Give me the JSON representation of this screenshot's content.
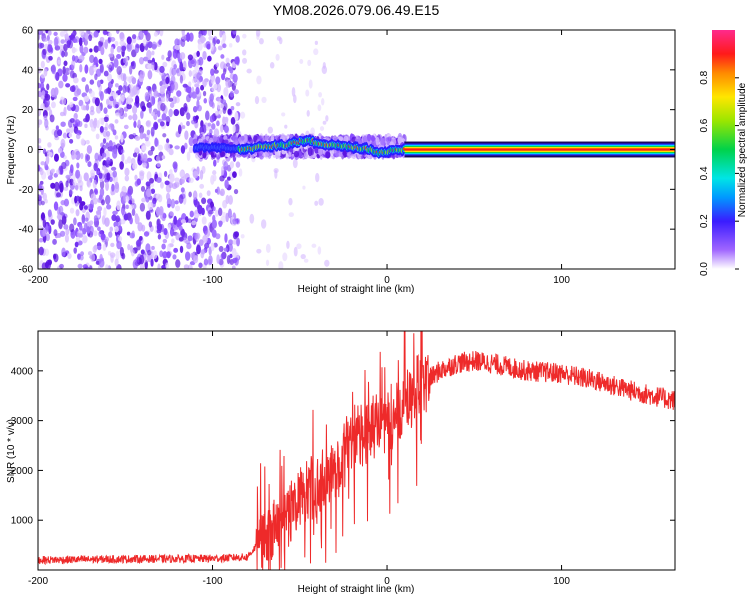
{
  "title": "YM08.2026.079.06.49.E15",
  "chart_data": [
    {
      "type": "heatmap",
      "name": "spectrogram",
      "xlabel": "Height of straight line (km)",
      "ylabel": "Frequency (Hz)",
      "xlim": [
        -200,
        165
      ],
      "ylim": [
        -60,
        60
      ],
      "xticks": [
        -200,
        -100,
        0,
        100
      ],
      "yticks": [
        -60,
        -40,
        -20,
        0,
        20,
        40,
        60
      ],
      "colorbar": {
        "label": "Normalized spectral amplitude",
        "range": [
          0.0,
          1.0
        ],
        "ticks": [
          0.0,
          0.2,
          0.4,
          0.6,
          0.8
        ]
      },
      "regions": [
        {
          "description": "broadband noise",
          "x_range": [
            -200,
            -85
          ],
          "freq_range": [
            -60,
            60
          ],
          "amplitude": [
            0.05,
            0.2
          ]
        },
        {
          "description": "scattered sparse noise",
          "x_range": [
            -85,
            -30
          ],
          "freq_range": [
            -60,
            60
          ],
          "amplitude": [
            0.0,
            0.05
          ]
        },
        {
          "description": "wobbling signal band",
          "x_range": [
            -110,
            10
          ],
          "freq_range": [
            -3,
            6
          ],
          "amplitude": [
            0.15,
            1.0
          ]
        },
        {
          "description": "steady signal line",
          "x_range": [
            10,
            165
          ],
          "freq": 0,
          "amplitude": 1.0
        }
      ],
      "signal_track": [
        {
          "x": -110,
          "f": 1
        },
        {
          "x": -95,
          "f": 1
        },
        {
          "x": -82,
          "f": 0
        },
        {
          "x": -75,
          "f": 1
        },
        {
          "x": -65,
          "f": 2
        },
        {
          "x": -58,
          "f": 2
        },
        {
          "x": -50,
          "f": 4
        },
        {
          "x": -45,
          "f": 5
        },
        {
          "x": -40,
          "f": 3
        },
        {
          "x": -35,
          "f": 2
        },
        {
          "x": -28,
          "f": 2
        },
        {
          "x": -20,
          "f": 1
        },
        {
          "x": -10,
          "f": 0
        },
        {
          "x": -5,
          "f": -2
        },
        {
          "x": 0,
          "f": -1
        },
        {
          "x": 5,
          "f": 0
        },
        {
          "x": 10,
          "f": 0
        }
      ]
    },
    {
      "type": "line",
      "name": "snr",
      "xlabel": "Height of straight line (km)",
      "ylabel": "SNR (10 * v/v)",
      "xlim": [
        -200,
        165
      ],
      "ylim": [
        0,
        4800
      ],
      "xticks": [
        -200,
        -100,
        0,
        100
      ],
      "yticks": [
        1000,
        2000,
        3000,
        4000
      ],
      "color": "#ee2a2a",
      "envelope": [
        {
          "x": -200,
          "y": 200
        },
        {
          "x": -150,
          "y": 220
        },
        {
          "x": -100,
          "y": 230
        },
        {
          "x": -80,
          "y": 260
        },
        {
          "x": -70,
          "y": 700
        },
        {
          "x": -60,
          "y": 900
        },
        {
          "x": -50,
          "y": 1500
        },
        {
          "x": -40,
          "y": 1600
        },
        {
          "x": -30,
          "y": 2000
        },
        {
          "x": -20,
          "y": 2600
        },
        {
          "x": -10,
          "y": 2800
        },
        {
          "x": 0,
          "y": 3000
        },
        {
          "x": 10,
          "y": 3300
        },
        {
          "x": 20,
          "y": 3700
        },
        {
          "x": 30,
          "y": 4000
        },
        {
          "x": 40,
          "y": 4150
        },
        {
          "x": 50,
          "y": 4200
        },
        {
          "x": 60,
          "y": 4150
        },
        {
          "x": 80,
          "y": 4000
        },
        {
          "x": 100,
          "y": 3950
        },
        {
          "x": 120,
          "y": 3800
        },
        {
          "x": 140,
          "y": 3600
        },
        {
          "x": 165,
          "y": 3400
        }
      ],
      "peak": {
        "x": 10,
        "y": 4800
      }
    }
  ]
}
